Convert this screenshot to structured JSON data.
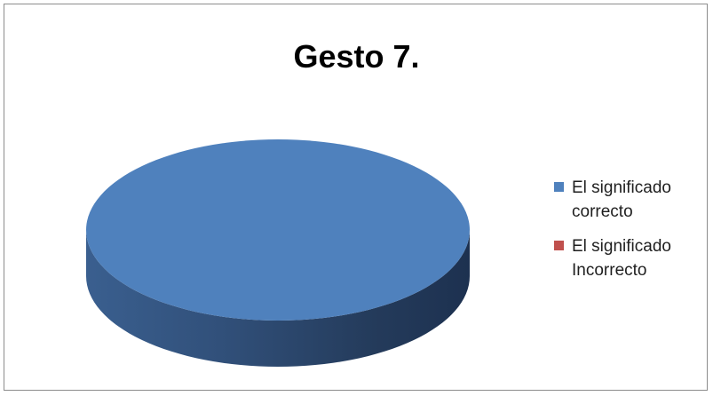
{
  "chart_data": {
    "type": "pie",
    "title": "Gesto 7.",
    "series": [
      {
        "name": "El significado correcto",
        "value": 100,
        "color": "#4f81bd"
      },
      {
        "name": "El significado Incorrecto",
        "value": 0,
        "color": "#c0504d"
      }
    ],
    "legend_lines": [
      [
        "El significado",
        "correcto"
      ],
      [
        "El significado",
        "Incorrecto"
      ]
    ],
    "style": "3d-pie",
    "legend_position": "right"
  }
}
